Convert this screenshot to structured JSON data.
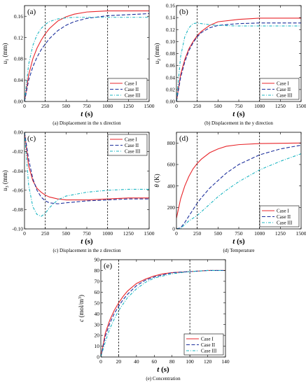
{
  "colors": {
    "case1": "#e8262b",
    "case2": "#1c2f9c",
    "case3": "#1cb6c2"
  },
  "legend_labels": [
    "Case I",
    "Case II",
    "Case III"
  ],
  "chart_data": [
    {
      "id": "a",
      "type": "line",
      "panel_label": "(a)",
      "caption": "(a) Displacement in the x direction",
      "xlabel": "t (s)",
      "ylabel": "u1 (mm)",
      "xlim": [
        0,
        1500
      ],
      "ylim": [
        0,
        0.18
      ],
      "xticks": [
        0,
        250,
        500,
        750,
        1000,
        1250,
        1500
      ],
      "yticks": [
        0.0,
        0.04,
        0.08,
        0.12,
        0.16
      ],
      "ytick_labels": [
        "0.00",
        "0.04",
        "0.08",
        "0.12",
        "0.16"
      ],
      "ref_lines_x": [
        250,
        1000
      ],
      "legend_position": "bottom-right",
      "series": [
        {
          "name": "Case I",
          "x": [
            0,
            50,
            100,
            150,
            200,
            250,
            300,
            400,
            500,
            600,
            750,
            1000,
            1250,
            1500
          ],
          "y": [
            0,
            0.05,
            0.08,
            0.1,
            0.115,
            0.127,
            0.137,
            0.151,
            0.159,
            0.164,
            0.168,
            0.17,
            0.17,
            0.17
          ]
        },
        {
          "name": "Case II",
          "x": [
            0,
            50,
            100,
            150,
            200,
            250,
            300,
            400,
            500,
            600,
            750,
            1000,
            1250,
            1500
          ],
          "y": [
            0,
            0.04,
            0.065,
            0.083,
            0.097,
            0.108,
            0.118,
            0.133,
            0.143,
            0.15,
            0.156,
            0.161,
            0.163,
            0.165
          ]
        },
        {
          "name": "Case III",
          "x": [
            0,
            50,
            100,
            150,
            200,
            250,
            300,
            400,
            500,
            600,
            750,
            1000,
            1250,
            1500
          ],
          "y": [
            0,
            0.07,
            0.105,
            0.125,
            0.137,
            0.145,
            0.15,
            0.155,
            0.157,
            0.158,
            0.158,
            0.158,
            0.158,
            0.158
          ]
        }
      ]
    },
    {
      "id": "b",
      "type": "line",
      "panel_label": "(b)",
      "caption": "(b) Displacement in the y direction",
      "xlabel": "t (s)",
      "ylabel": "u2 (mm)",
      "xlim": [
        0,
        1500
      ],
      "ylim": [
        0,
        0.16
      ],
      "xticks": [
        0,
        250,
        500,
        750,
        1000,
        1250,
        1500
      ],
      "yticks": [
        0.0,
        0.02,
        0.04,
        0.06,
        0.08,
        0.1,
        0.12,
        0.14,
        0.16
      ],
      "ytick_labels": [
        "0.00",
        "0.02",
        "0.04",
        "0.06",
        "0.08",
        "0.10",
        "0.12",
        "0.14",
        "0.16"
      ],
      "ref_lines_x": [
        250,
        1000
      ],
      "legend_position": "bottom-right",
      "series": [
        {
          "name": "Case I",
          "x": [
            0,
            50,
            100,
            150,
            200,
            250,
            300,
            400,
            500,
            750,
            1000,
            1250,
            1500
          ],
          "y": [
            0,
            0.045,
            0.07,
            0.088,
            0.1,
            0.11,
            0.117,
            0.127,
            0.133,
            0.137,
            0.139,
            0.139,
            0.139
          ]
        },
        {
          "name": "Case II",
          "x": [
            0,
            50,
            100,
            150,
            200,
            250,
            300,
            400,
            500,
            750,
            1000,
            1250,
            1500
          ],
          "y": [
            0,
            0.04,
            0.066,
            0.085,
            0.098,
            0.108,
            0.115,
            0.123,
            0.127,
            0.13,
            0.131,
            0.131,
            0.131
          ]
        },
        {
          "name": "Case III",
          "x": [
            0,
            50,
            100,
            150,
            200,
            250,
            300,
            400,
            500,
            750,
            1000,
            1250,
            1500
          ],
          "y": [
            0,
            0.075,
            0.108,
            0.123,
            0.13,
            0.131,
            0.13,
            0.128,
            0.127,
            0.126,
            0.126,
            0.126,
            0.126
          ]
        }
      ]
    },
    {
      "id": "c",
      "type": "line",
      "panel_label": "(c)",
      "caption": "(c) Displacement in the z direction",
      "xlabel": "t (s)",
      "ylabel": "u3 (mm)",
      "xlim": [
        0,
        1500
      ],
      "ylim": [
        -0.1,
        0
      ],
      "xticks": [
        0,
        250,
        500,
        750,
        1000,
        1250,
        1500
      ],
      "yticks": [
        -0.1,
        -0.08,
        -0.06,
        -0.04,
        -0.02,
        0.0
      ],
      "ytick_labels": [
        "-0.10",
        "-0.08",
        "-0.06",
        "-0.04",
        "-0.02",
        "0.00"
      ],
      "ref_lines_x": [
        250,
        1000
      ],
      "legend_position": "top-right",
      "series": [
        {
          "name": "Case I",
          "x": [
            0,
            50,
            100,
            150,
            200,
            250,
            300,
            400,
            500,
            750,
            1000,
            1250,
            1500
          ],
          "y": [
            0,
            -0.035,
            -0.05,
            -0.058,
            -0.062,
            -0.065,
            -0.067,
            -0.069,
            -0.07,
            -0.07,
            -0.069,
            -0.068,
            -0.068
          ]
        },
        {
          "name": "Case II",
          "x": [
            0,
            50,
            100,
            150,
            200,
            250,
            300,
            400,
            500,
            750,
            1000,
            1250,
            1500
          ],
          "y": [
            0,
            -0.028,
            -0.048,
            -0.06,
            -0.067,
            -0.071,
            -0.073,
            -0.074,
            -0.073,
            -0.071,
            -0.07,
            -0.069,
            -0.069
          ]
        },
        {
          "name": "Case III",
          "x": [
            0,
            50,
            100,
            150,
            200,
            250,
            300,
            400,
            500,
            750,
            1000,
            1250,
            1500
          ],
          "y": [
            0,
            -0.055,
            -0.077,
            -0.085,
            -0.087,
            -0.084,
            -0.078,
            -0.07,
            -0.066,
            -0.062,
            -0.06,
            -0.059,
            -0.059
          ]
        }
      ]
    },
    {
      "id": "d",
      "type": "line",
      "panel_label": "(d)",
      "caption": "(d) Temperature",
      "xlabel": "t (s)",
      "ylabel": "θ (K)",
      "xlim": [
        0,
        1500
      ],
      "ylim": [
        0,
        900
      ],
      "xticks": [
        0,
        250,
        500,
        750,
        1000,
        1250,
        1500
      ],
      "yticks": [
        0,
        200,
        400,
        600,
        800
      ],
      "ytick_labels": [
        "0",
        "200",
        "400",
        "600",
        "800"
      ],
      "ref_lines_x": [
        250,
        1000
      ],
      "legend_position": "bottom-right",
      "series": [
        {
          "name": "Case I",
          "x": [
            0,
            50,
            100,
            150,
            200,
            250,
            300,
            400,
            500,
            600,
            750,
            1000,
            1250,
            1500
          ],
          "y": [
            100,
            280,
            400,
            490,
            560,
            610,
            650,
            710,
            745,
            770,
            785,
            795,
            798,
            800
          ]
        },
        {
          "name": "Case II",
          "x": [
            0,
            50,
            100,
            150,
            200,
            250,
            300,
            400,
            500,
            600,
            750,
            1000,
            1250,
            1500
          ],
          "y": [
            0,
            10,
            60,
            120,
            180,
            240,
            290,
            380,
            450,
            520,
            600,
            690,
            745,
            780
          ]
        },
        {
          "name": "Case III",
          "x": [
            0,
            50,
            100,
            150,
            200,
            250,
            300,
            400,
            500,
            600,
            750,
            1000,
            1250,
            1500
          ],
          "y": [
            0,
            5,
            40,
            75,
            100,
            125,
            160,
            230,
            300,
            360,
            440,
            550,
            630,
            700
          ]
        }
      ]
    },
    {
      "id": "e",
      "type": "line",
      "panel_label": "(e)",
      "caption": "(e) Concentration",
      "xlabel": "t (s)",
      "ylabel": "c (mol/m3)",
      "xlim": [
        0,
        140
      ],
      "ylim": [
        0,
        90
      ],
      "xticks": [
        0,
        20,
        40,
        60,
        80,
        100,
        120,
        140
      ],
      "yticks": [
        0,
        10,
        20,
        30,
        40,
        50,
        60,
        70,
        80,
        90
      ],
      "ytick_labels": [
        "0",
        "10",
        "20",
        "30",
        "40",
        "50",
        "60",
        "70",
        "80",
        "90"
      ],
      "ref_lines_x": [
        20,
        100
      ],
      "legend_position": "bottom-right",
      "series": [
        {
          "name": "Case I",
          "x": [
            0,
            5,
            10,
            15,
            20,
            25,
            30,
            40,
            50,
            60,
            70,
            80,
            100,
            120,
            140
          ],
          "y": [
            0,
            22,
            34,
            43,
            50,
            56,
            61,
            68,
            72,
            75,
            77,
            78,
            79,
            80,
            80
          ]
        },
        {
          "name": "Case II",
          "x": [
            0,
            5,
            10,
            15,
            20,
            25,
            30,
            40,
            50,
            60,
            70,
            80,
            100,
            120,
            140
          ],
          "y": [
            0,
            19,
            31,
            40,
            47,
            53,
            58,
            66,
            71,
            74,
            76,
            78,
            79,
            80,
            80
          ]
        },
        {
          "name": "Case III",
          "x": [
            0,
            5,
            10,
            15,
            20,
            25,
            30,
            40,
            50,
            60,
            70,
            80,
            100,
            120,
            140
          ],
          "y": [
            0,
            14,
            26,
            35,
            43,
            49,
            55,
            63,
            69,
            73,
            75,
            77,
            79,
            80,
            80
          ]
        }
      ]
    }
  ]
}
